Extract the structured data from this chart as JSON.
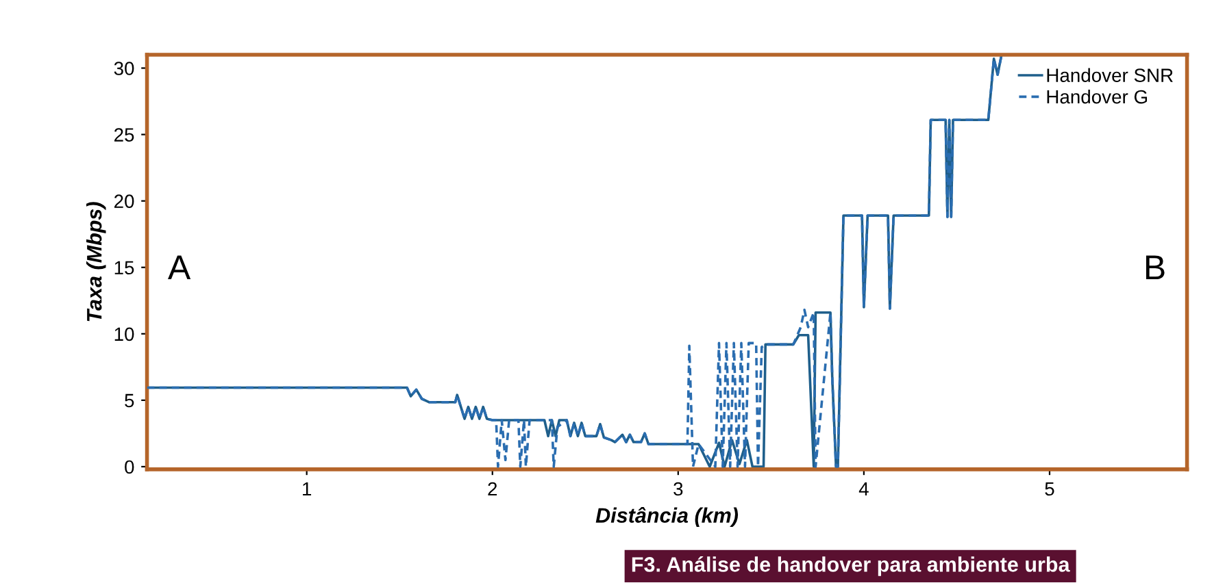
{
  "chart_data": {
    "type": "line",
    "xlabel": "Distância (km)",
    "ylabel": "Taxa (Mbps)",
    "xlim": [
      0.14,
      5.74
    ],
    "ylim": [
      -0.2,
      31.0
    ],
    "xticks": [
      1,
      2,
      3,
      4,
      5
    ],
    "yticks": [
      0,
      5,
      10,
      15,
      20,
      25,
      30
    ],
    "grid": false,
    "legend": "top right",
    "series": [
      {
        "name": "Handover SNR",
        "color": "#1f5f8b",
        "line_style": "solid",
        "x": [
          0.14,
          1.54,
          1.56,
          1.59,
          1.62,
          1.66,
          1.8,
          1.81,
          1.83,
          1.85,
          1.87,
          1.89,
          1.91,
          1.93,
          1.95,
          1.97,
          2.0,
          2.28,
          2.3,
          2.32,
          2.34,
          2.36,
          2.4,
          2.42,
          2.44,
          2.46,
          2.48,
          2.5,
          2.56,
          2.58,
          2.6,
          2.64,
          2.66,
          2.7,
          2.72,
          2.74,
          2.76,
          2.8,
          2.82,
          2.84,
          3.11,
          3.17,
          3.22,
          3.25,
          3.29,
          3.33,
          3.37,
          3.4,
          3.46,
          3.47,
          3.62,
          3.65,
          3.7,
          3.73,
          3.74,
          3.82,
          3.83,
          3.85,
          3.86,
          3.89,
          3.99,
          4.0,
          4.02,
          4.13,
          4.14,
          4.16,
          4.35,
          4.36,
          4.44,
          4.45,
          4.46,
          4.47,
          4.48,
          4.67,
          4.7,
          4.72,
          4.74
        ],
        "values": [
          5.95,
          5.95,
          5.3,
          5.8,
          5.1,
          4.85,
          4.85,
          5.4,
          4.5,
          3.6,
          4.5,
          3.6,
          4.5,
          3.6,
          4.5,
          3.6,
          3.5,
          3.5,
          2.3,
          3.5,
          2.3,
          3.5,
          3.5,
          2.3,
          3.3,
          2.3,
          3.3,
          2.3,
          2.3,
          3.2,
          2.2,
          2.0,
          1.85,
          2.4,
          1.85,
          2.4,
          1.85,
          1.85,
          2.5,
          1.7,
          1.7,
          0,
          1.8,
          0,
          2.0,
          0.2,
          2.0,
          0,
          0,
          9.2,
          9.2,
          9.9,
          9.9,
          0,
          11.6,
          11.6,
          6.6,
          0,
          0,
          18.9,
          18.9,
          12.0,
          18.9,
          18.9,
          11.9,
          18.9,
          18.9,
          26.1,
          26.1,
          18.8,
          26.1,
          18.8,
          26.1,
          26.1,
          30.7,
          29.5,
          30.9
        ]
      },
      {
        "name": "Handover G",
        "color": "#2a6db0",
        "line_style": "dashed",
        "x": [
          0.14,
          1.54,
          1.56,
          1.59,
          1.62,
          1.66,
          1.8,
          1.81,
          1.83,
          1.85,
          1.87,
          1.89,
          1.91,
          1.93,
          1.95,
          1.97,
          2.0,
          2.02,
          2.03,
          2.05,
          2.07,
          2.09,
          2.14,
          2.15,
          2.17,
          2.18,
          2.2,
          2.32,
          2.33,
          2.35,
          2.4,
          2.42,
          2.44,
          2.46,
          2.48,
          2.5,
          2.56,
          2.58,
          2.6,
          2.64,
          2.66,
          2.7,
          2.72,
          2.74,
          2.76,
          2.8,
          2.82,
          2.84,
          3.05,
          3.06,
          3.08,
          3.11,
          3.2,
          3.22,
          3.24,
          3.26,
          3.28,
          3.3,
          3.32,
          3.34,
          3.36,
          3.38,
          3.42,
          3.43,
          3.45,
          3.47,
          3.62,
          3.66,
          3.68,
          3.7,
          3.73,
          3.74,
          3.82,
          3.83,
          3.85,
          3.86,
          3.89,
          3.99,
          4.0,
          4.02,
          4.13,
          4.14,
          4.16,
          4.35,
          4.36,
          4.44,
          4.45,
          4.46,
          4.47,
          4.48,
          4.67,
          4.7,
          4.72,
          4.74
        ],
        "values": [
          5.95,
          5.95,
          5.3,
          5.8,
          5.1,
          4.85,
          4.85,
          5.4,
          4.5,
          3.6,
          4.5,
          3.6,
          4.5,
          3.6,
          4.5,
          3.6,
          3.5,
          3.5,
          0,
          3.5,
          0.5,
          3.5,
          3.5,
          0,
          3.5,
          0,
          3.5,
          3.5,
          0,
          3.0,
          3.5,
          2.3,
          3.3,
          2.3,
          3.3,
          2.3,
          2.3,
          3.2,
          2.2,
          2.0,
          1.85,
          2.4,
          1.85,
          2.4,
          1.85,
          1.85,
          2.5,
          1.7,
          1.7,
          9.1,
          0,
          1.7,
          0,
          9.3,
          0,
          9.3,
          0,
          9.3,
          0,
          9.3,
          0,
          9.3,
          9.3,
          0,
          9.0,
          9.2,
          9.2,
          10.5,
          11.8,
          10.5,
          11.6,
          0,
          11.6,
          6.6,
          0,
          0,
          18.9,
          18.9,
          12.0,
          18.9,
          18.9,
          11.9,
          18.9,
          18.9,
          26.1,
          26.1,
          18.8,
          26.1,
          18.8,
          26.1,
          26.1,
          30.7,
          29.5,
          30.9
        ]
      }
    ],
    "annotations": [
      "A",
      "B",
      "F3. Análise de handover para ambiente urba"
    ]
  }
}
